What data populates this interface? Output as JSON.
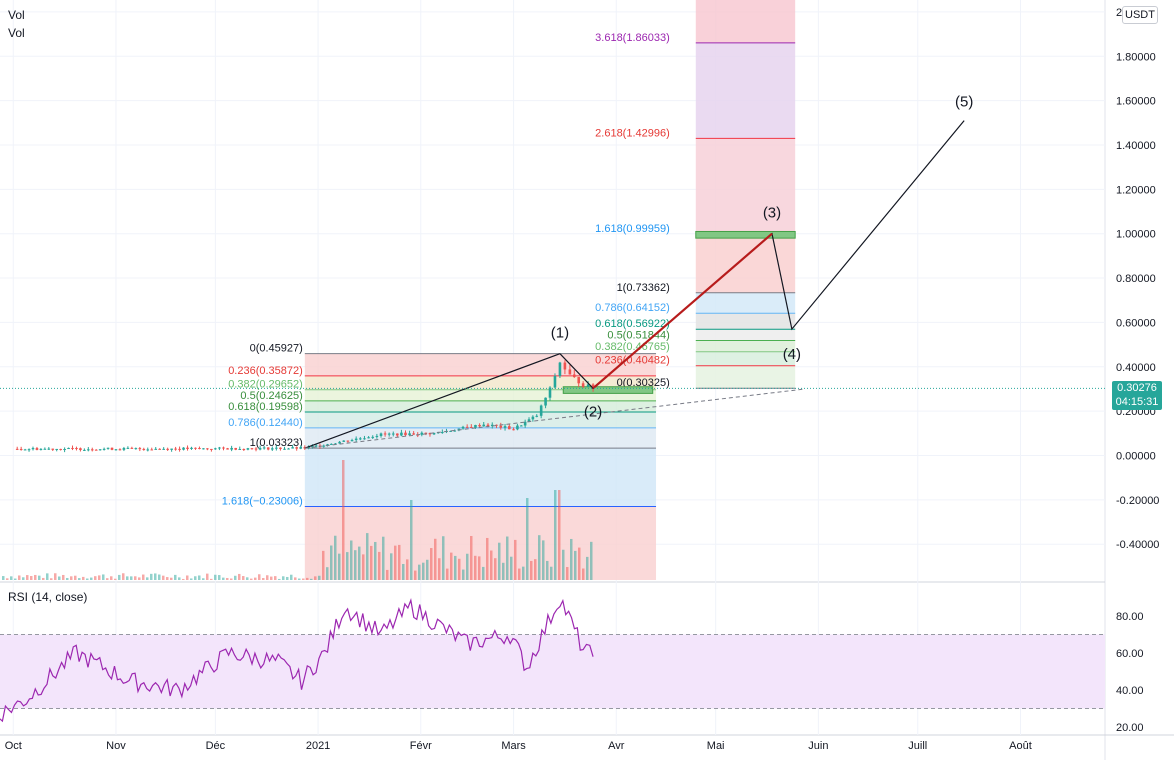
{
  "legend": {
    "vol_1": "Vol",
    "vol_2": "Vol"
  },
  "currency_badge": "USDT",
  "last_price": {
    "value": "0.30276",
    "countdown": "04:15:31",
    "color": "#26a69a"
  },
  "rsi": {
    "title": "RSI (14, close)",
    "levels": [
      30,
      70
    ],
    "axis_ticks": [
      "20.00",
      "40.00",
      "60.00",
      "80.00"
    ]
  },
  "colors": {
    "up": "#26a69a",
    "down": "#ef5350",
    "rsi_line": "#9c27b0",
    "wave_line": "#131722"
  },
  "chart_data": {
    "type": "candlestick",
    "title": "",
    "xlabel": "",
    "ylabel": "",
    "ylim": [
      -0.5,
      2.0
    ],
    "price_ticks": [
      "-0.40000",
      "-0.20000",
      "0.00000",
      "0.20000",
      "0.40000",
      "0.60000",
      "0.80000",
      "1.00000",
      "1.20000",
      "1.40000",
      "1.60000",
      "1.80000",
      "2"
    ],
    "x_ticks": [
      "Oct",
      "Nov",
      "Déc",
      "2021",
      "Févr",
      "Mars",
      "Avr",
      "Mai",
      "Juin",
      "Juill",
      "Août"
    ],
    "price_series": [
      {
        "date": "2020-10-01",
        "close": 0.03
      },
      {
        "date": "2020-11-01",
        "close": 0.03
      },
      {
        "date": "2020-12-01",
        "close": 0.031
      },
      {
        "date": "2020-12-28",
        "close": 0.033
      },
      {
        "date": "2021-01-05",
        "close": 0.055
      },
      {
        "date": "2021-01-20",
        "close": 0.095
      },
      {
        "date": "2021-02-05",
        "close": 0.1
      },
      {
        "date": "2021-02-20",
        "close": 0.14
      },
      {
        "date": "2021-03-01",
        "close": 0.12
      },
      {
        "date": "2021-03-08",
        "close": 0.18
      },
      {
        "date": "2021-03-12",
        "close": 0.3
      },
      {
        "date": "2021-03-15",
        "close": 0.42
      },
      {
        "date": "2021-03-18",
        "close": 0.36
      },
      {
        "date": "2021-03-22",
        "close": 0.32
      },
      {
        "date": "2021-03-25",
        "close": 0.303
      }
    ],
    "fib_retracement_1": [
      {
        "label": "0(0.45927)",
        "value": 0.45927
      },
      {
        "label": "0.236(0.35872)",
        "value": 0.35872
      },
      {
        "label": "0.382(0.29652)",
        "value": 0.29652
      },
      {
        "label": "0.5(0.24625)",
        "value": 0.24625
      },
      {
        "label": "0.618(0.19598)",
        "value": 0.19598
      },
      {
        "label": "0.786(0.12440)",
        "value": 0.1244
      },
      {
        "label": "1(0.03323)",
        "value": 0.03323
      },
      {
        "label": "1.618(−0.23006)",
        "value": -0.23006
      }
    ],
    "fib_extension_2": [
      {
        "label": "3.618(1.86033)",
        "value": 1.86033
      },
      {
        "label": "2.618(1.42996)",
        "value": 1.42996
      },
      {
        "label": "1.618(0.99959)",
        "value": 0.99959
      },
      {
        "label": "1(0.73362)",
        "value": 0.73362
      },
      {
        "label": "0.786(0.64152)",
        "value": 0.64152
      },
      {
        "label": "0.618(0.56922)",
        "value": 0.56922
      },
      {
        "label": "0.5(0.51844)",
        "value": 0.51844
      },
      {
        "label": "0.382(0.46765)",
        "value": 0.46765
      },
      {
        "label": "0.236(0.40482)",
        "value": 0.40482
      },
      {
        "label": "0(0.30325)",
        "value": 0.30325
      }
    ],
    "elliott_waves": [
      {
        "label": "(1)",
        "date": "2021-03-15",
        "price": 0.459
      },
      {
        "label": "(2)",
        "date": "2021-03-25",
        "price": 0.303
      },
      {
        "label": "(3)",
        "date": "2021-05-18",
        "price": 1.0
      },
      {
        "label": "(4)",
        "date": "2021-05-24",
        "price": 0.57
      },
      {
        "label": "(5)",
        "date": "2021-07-15",
        "price": 1.51
      }
    ],
    "rsi_series": [
      {
        "date": "2020-09-25",
        "value": 25
      },
      {
        "date": "2020-10-05",
        "value": 35
      },
      {
        "date": "2020-10-20",
        "value": 60
      },
      {
        "date": "2020-11-05",
        "value": 45
      },
      {
        "date": "2020-11-20",
        "value": 40
      },
      {
        "date": "2020-12-05",
        "value": 60
      },
      {
        "date": "2020-12-20",
        "value": 55
      },
      {
        "date": "2020-12-27",
        "value": 45
      },
      {
        "date": "2021-01-03",
        "value": 60
      },
      {
        "date": "2021-01-09",
        "value": 85
      },
      {
        "date": "2021-01-20",
        "value": 70
      },
      {
        "date": "2021-01-29",
        "value": 85
      },
      {
        "date": "2021-02-15",
        "value": 65
      },
      {
        "date": "2021-02-28",
        "value": 70
      },
      {
        "date": "2021-03-05",
        "value": 52
      },
      {
        "date": "2021-03-15",
        "value": 90
      },
      {
        "date": "2021-03-22",
        "value": 62
      },
      {
        "date": "2021-03-25",
        "value": 58
      }
    ]
  }
}
